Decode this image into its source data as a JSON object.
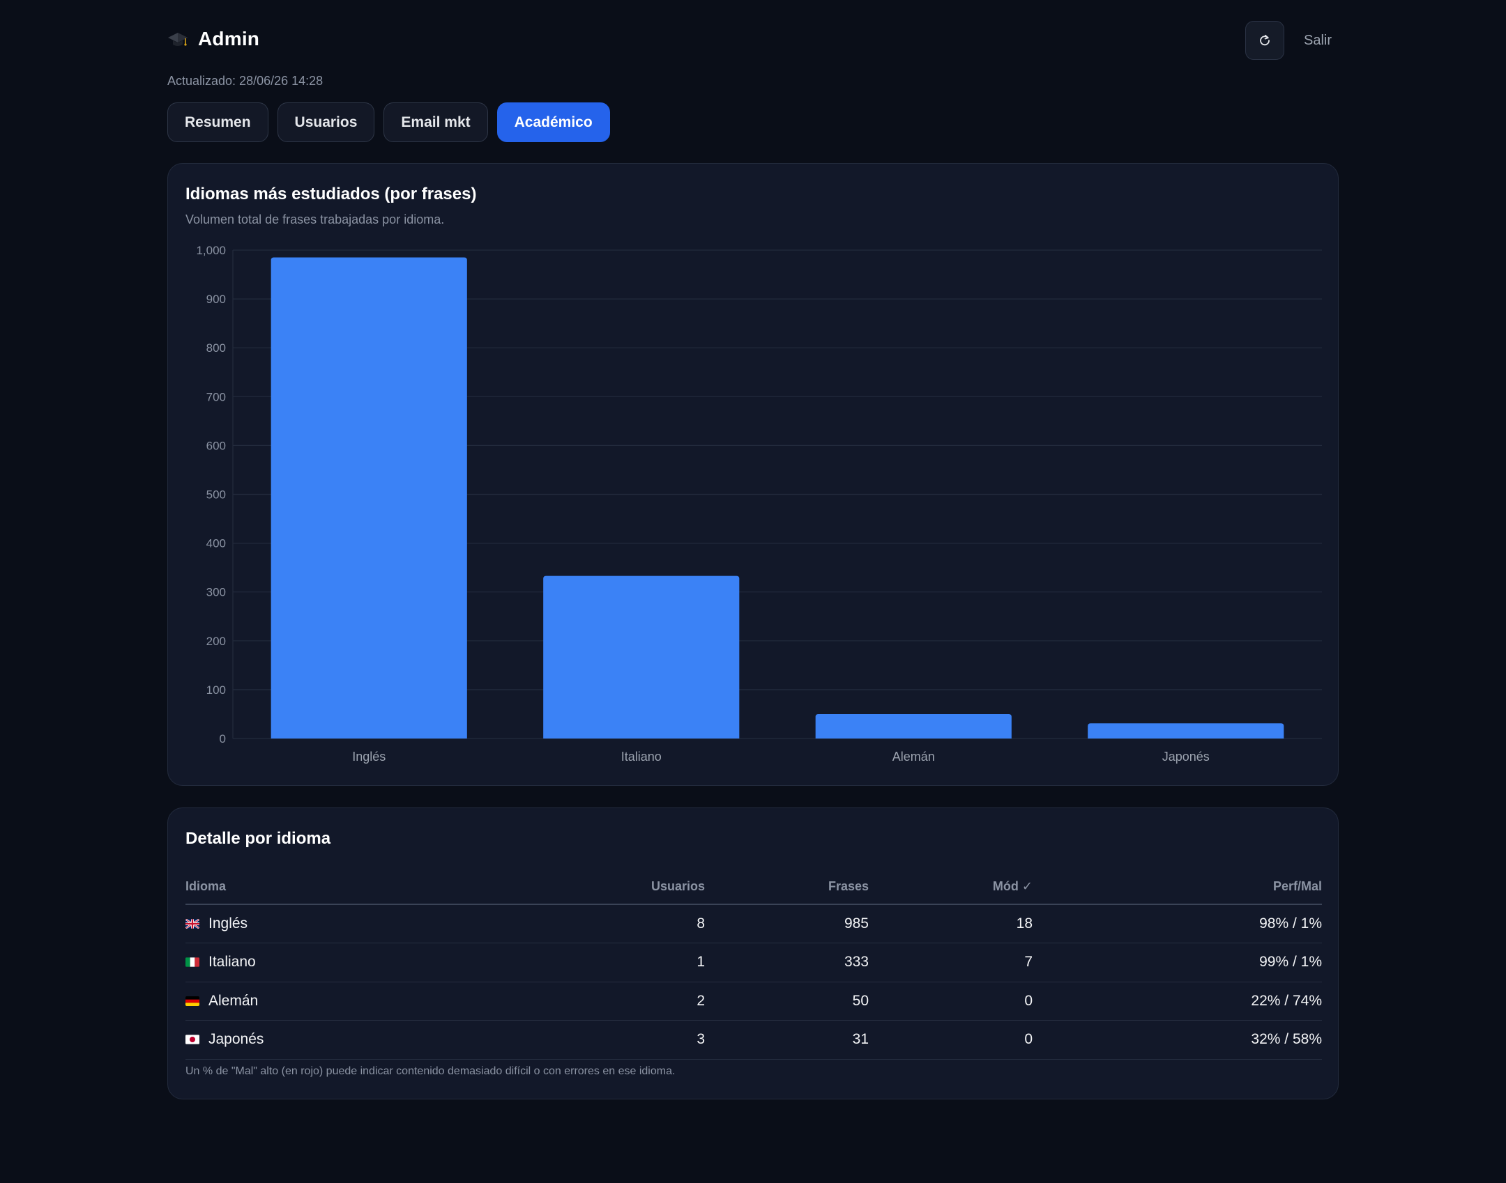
{
  "header": {
    "title": "Admin",
    "brand_icon": "graduation-cap-icon",
    "updated": "Actualizado: 28/06/26 14:28",
    "refresh_icon": "refresh-icon",
    "logout_label": "Salir"
  },
  "tabs": [
    {
      "label": "Resumen",
      "active": false
    },
    {
      "label": "Usuarios",
      "active": false
    },
    {
      "label": "Email mkt",
      "active": false
    },
    {
      "label": "Académico",
      "active": true
    }
  ],
  "chart_card": {
    "title": "Idiomas más estudiados (por frases)",
    "subtitle": "Volumen total de frases trabajadas por idioma."
  },
  "chart_data": {
    "type": "bar",
    "categories": [
      "Inglés",
      "Italiano",
      "Alemán",
      "Japonés"
    ],
    "values": [
      985,
      333,
      50,
      31
    ],
    "ylim": [
      0,
      1000
    ],
    "yticks": [
      "0",
      "100",
      "200",
      "300",
      "400",
      "500",
      "600",
      "700",
      "800",
      "900",
      "1,000"
    ],
    "grid": true,
    "legend": "none",
    "bar_color": "#3b82f6"
  },
  "table": {
    "title": "Detalle por idioma",
    "headers": {
      "language": "Idioma",
      "users": "Usuarios",
      "phrases": "Frases",
      "modules": "Mód ✓",
      "perf": "Perf/Mal"
    },
    "rows": [
      {
        "flag": "uk-flag-icon",
        "language": "Inglés",
        "users": "8",
        "phrases": "985",
        "modules": "18",
        "perf": "98% / 1%",
        "warning": false
      },
      {
        "flag": "italy-flag-icon",
        "language": "Italiano",
        "users": "1",
        "phrases": "333",
        "modules": "7",
        "perf": "99% / 1%",
        "warning": false
      },
      {
        "flag": "germany-flag-icon",
        "language": "Alemán",
        "users": "2",
        "phrases": "50",
        "modules": "0",
        "perf": "22% / 74%",
        "warning": true
      },
      {
        "flag": "japan-flag-icon",
        "language": "Japonés",
        "users": "3",
        "phrases": "31",
        "modules": "0",
        "perf": "32% / 58%",
        "warning": true
      }
    ],
    "note": "Un % de \"Mal\" alto (en rojo) puede indicar contenido demasiado difícil o con errores en ese idioma."
  },
  "colors": {
    "accent": "#2563eb",
    "bar": "#3b82f6",
    "warning_text": "#f26b6b",
    "background": "#0a0e18",
    "card": "#121829"
  }
}
